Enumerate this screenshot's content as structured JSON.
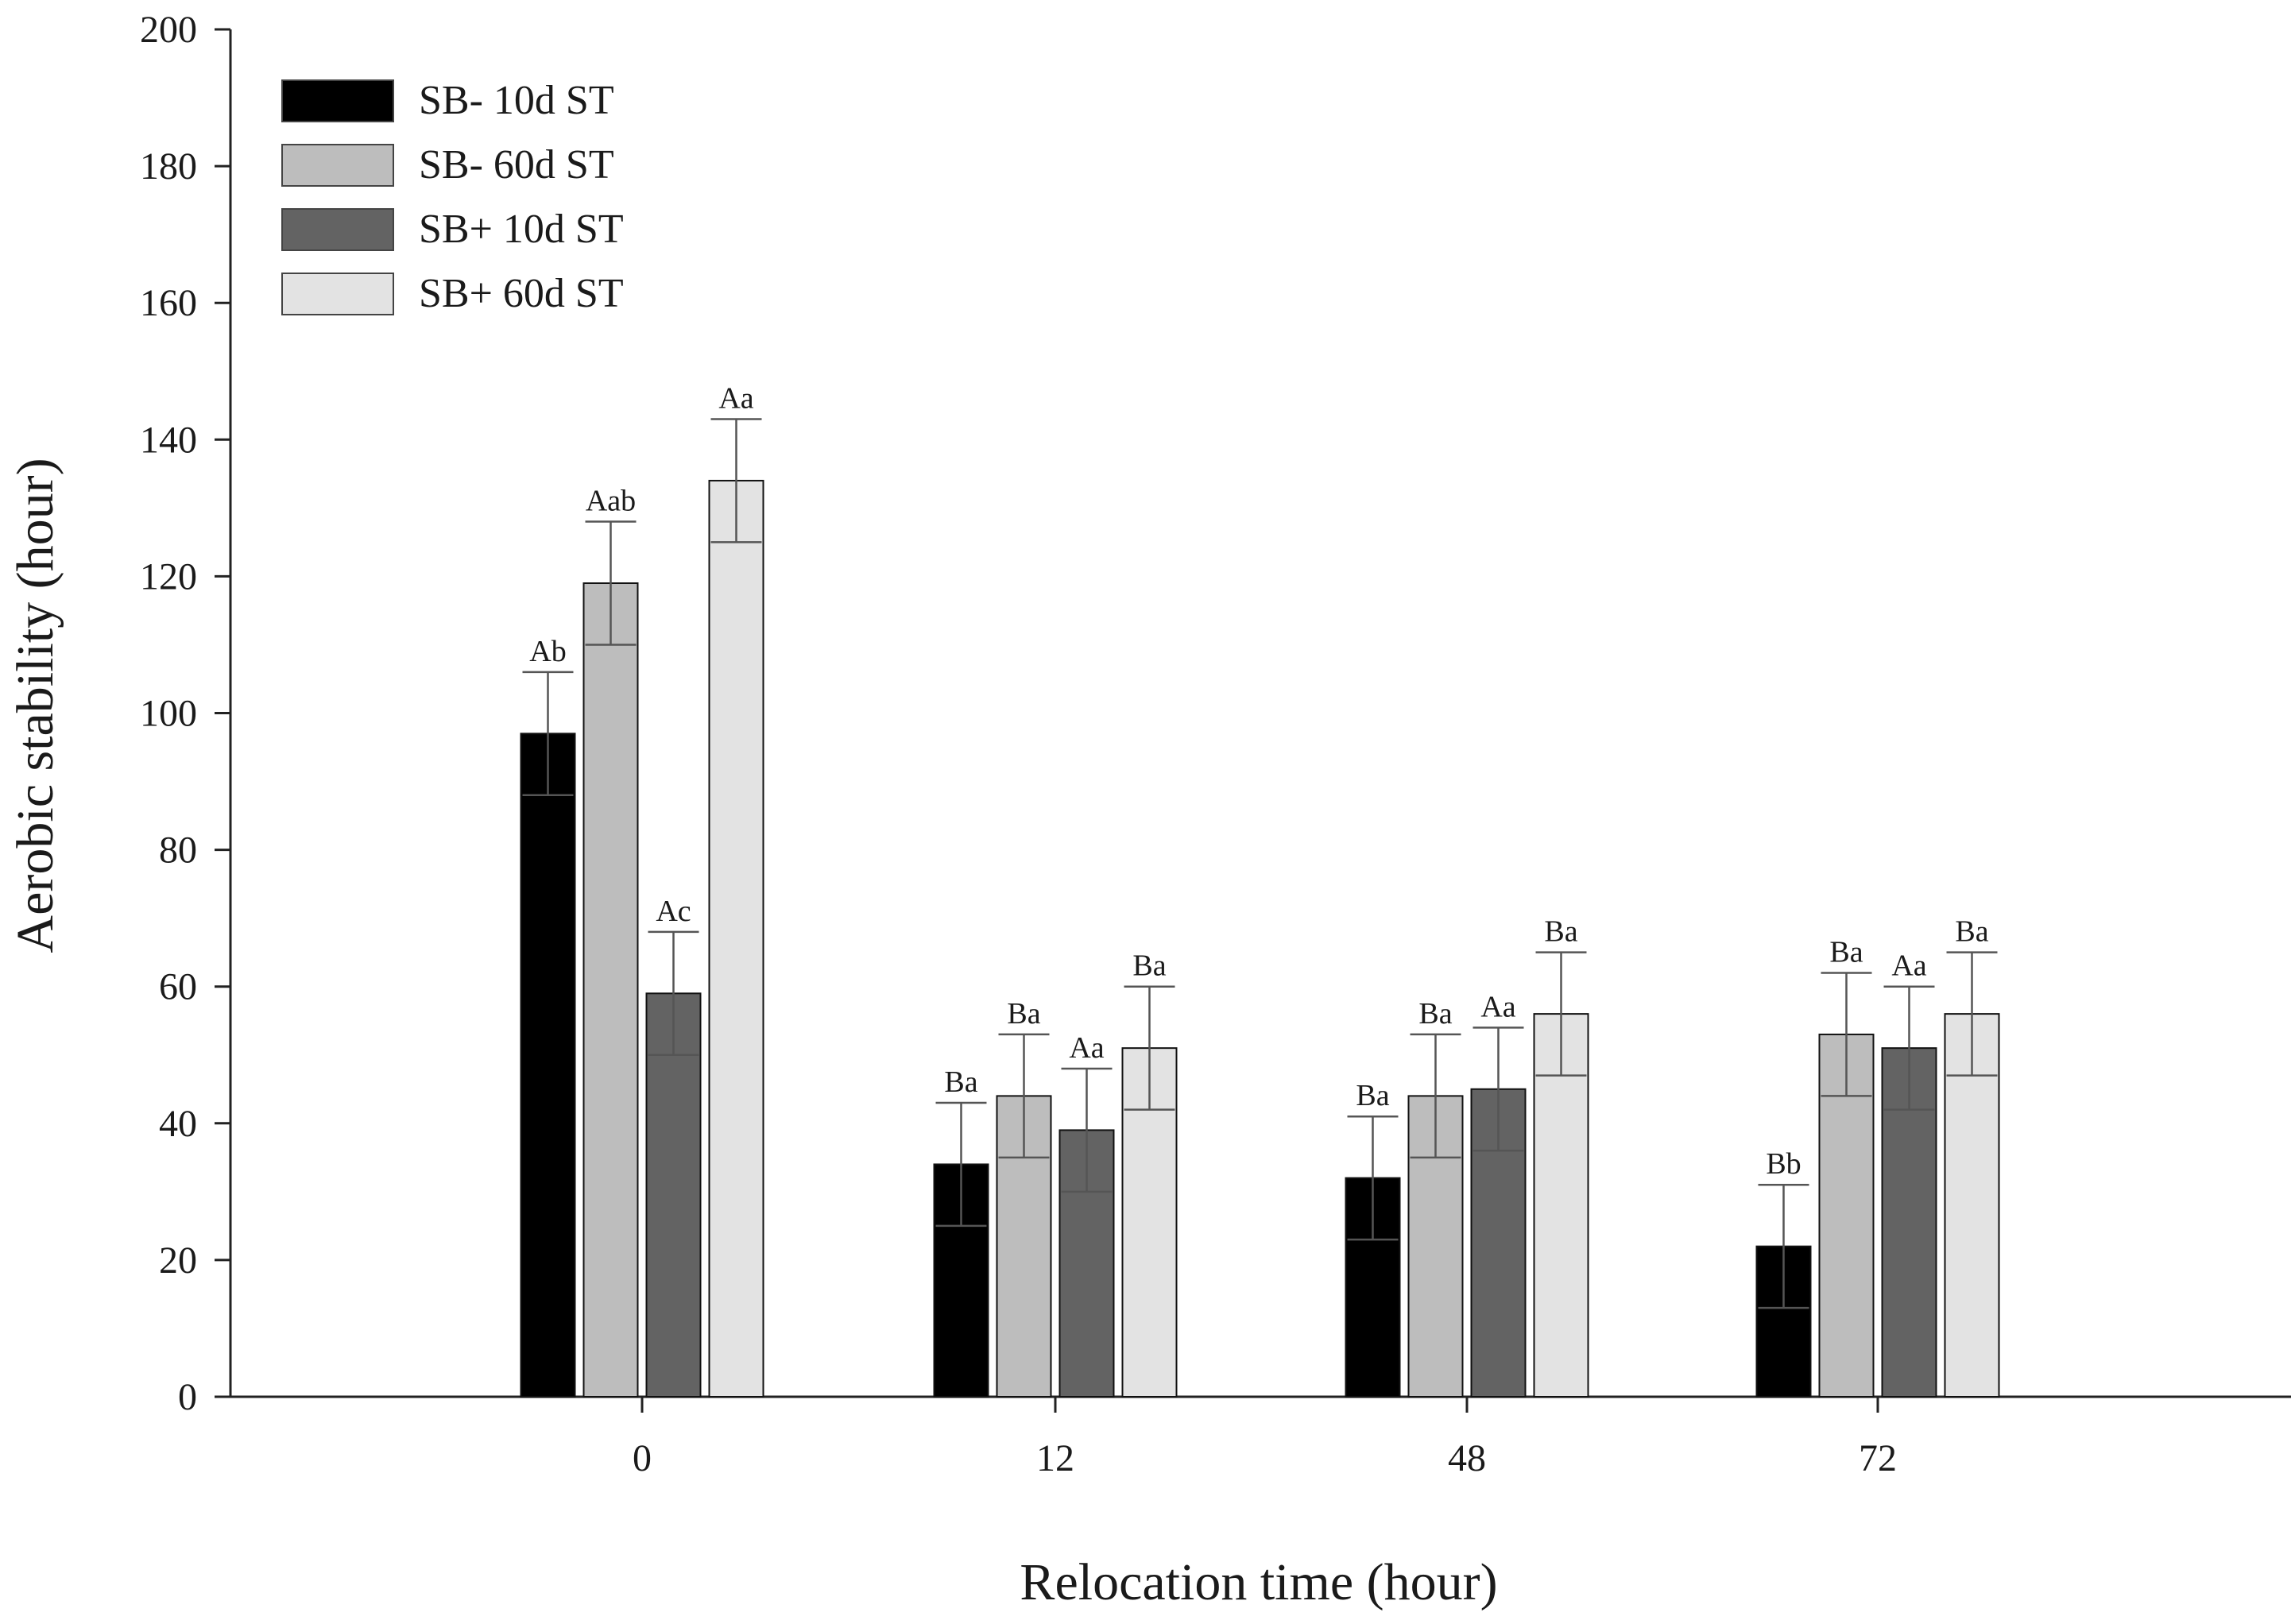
{
  "chart_data": {
    "type": "bar",
    "title": "",
    "xlabel": "Relocation time (hour)",
    "ylabel": "Aerobic stability (hour)",
    "ylim": [
      0,
      200
    ],
    "yticks": [
      "0",
      "20",
      "40",
      "60",
      "80",
      "100",
      "120",
      "140",
      "160",
      "180",
      "200"
    ],
    "categories": [
      "0",
      "12",
      "48",
      "72"
    ],
    "legend_position": "top-left",
    "series": [
      {
        "name": "SB- 10d ST",
        "color": "#000000",
        "values": [
          97,
          34,
          32,
          22
        ],
        "errors": [
          9,
          9,
          9,
          9
        ],
        "labels": [
          "Ab",
          "Ba",
          "Ba",
          "Bb"
        ]
      },
      {
        "name": "SB- 60d ST",
        "color": "#bdbdbd",
        "values": [
          119,
          44,
          44,
          53
        ],
        "errors": [
          9,
          9,
          9,
          9
        ],
        "labels": [
          "Aab",
          "Ba",
          "Ba",
          "Ba"
        ]
      },
      {
        "name": "SB+ 10d ST",
        "color": "#636363",
        "values": [
          59,
          39,
          45,
          51
        ],
        "errors": [
          9,
          9,
          9,
          9
        ],
        "labels": [
          "Ac",
          "Aa",
          "Aa",
          "Aa"
        ]
      },
      {
        "name": "SB+ 60d ST",
        "color": "#e3e3e3",
        "values": [
          134,
          51,
          56,
          56
        ],
        "errors": [
          9,
          9,
          9,
          9
        ],
        "labels": [
          "Aa",
          "Ba",
          "Ba",
          "Ba"
        ]
      }
    ]
  }
}
